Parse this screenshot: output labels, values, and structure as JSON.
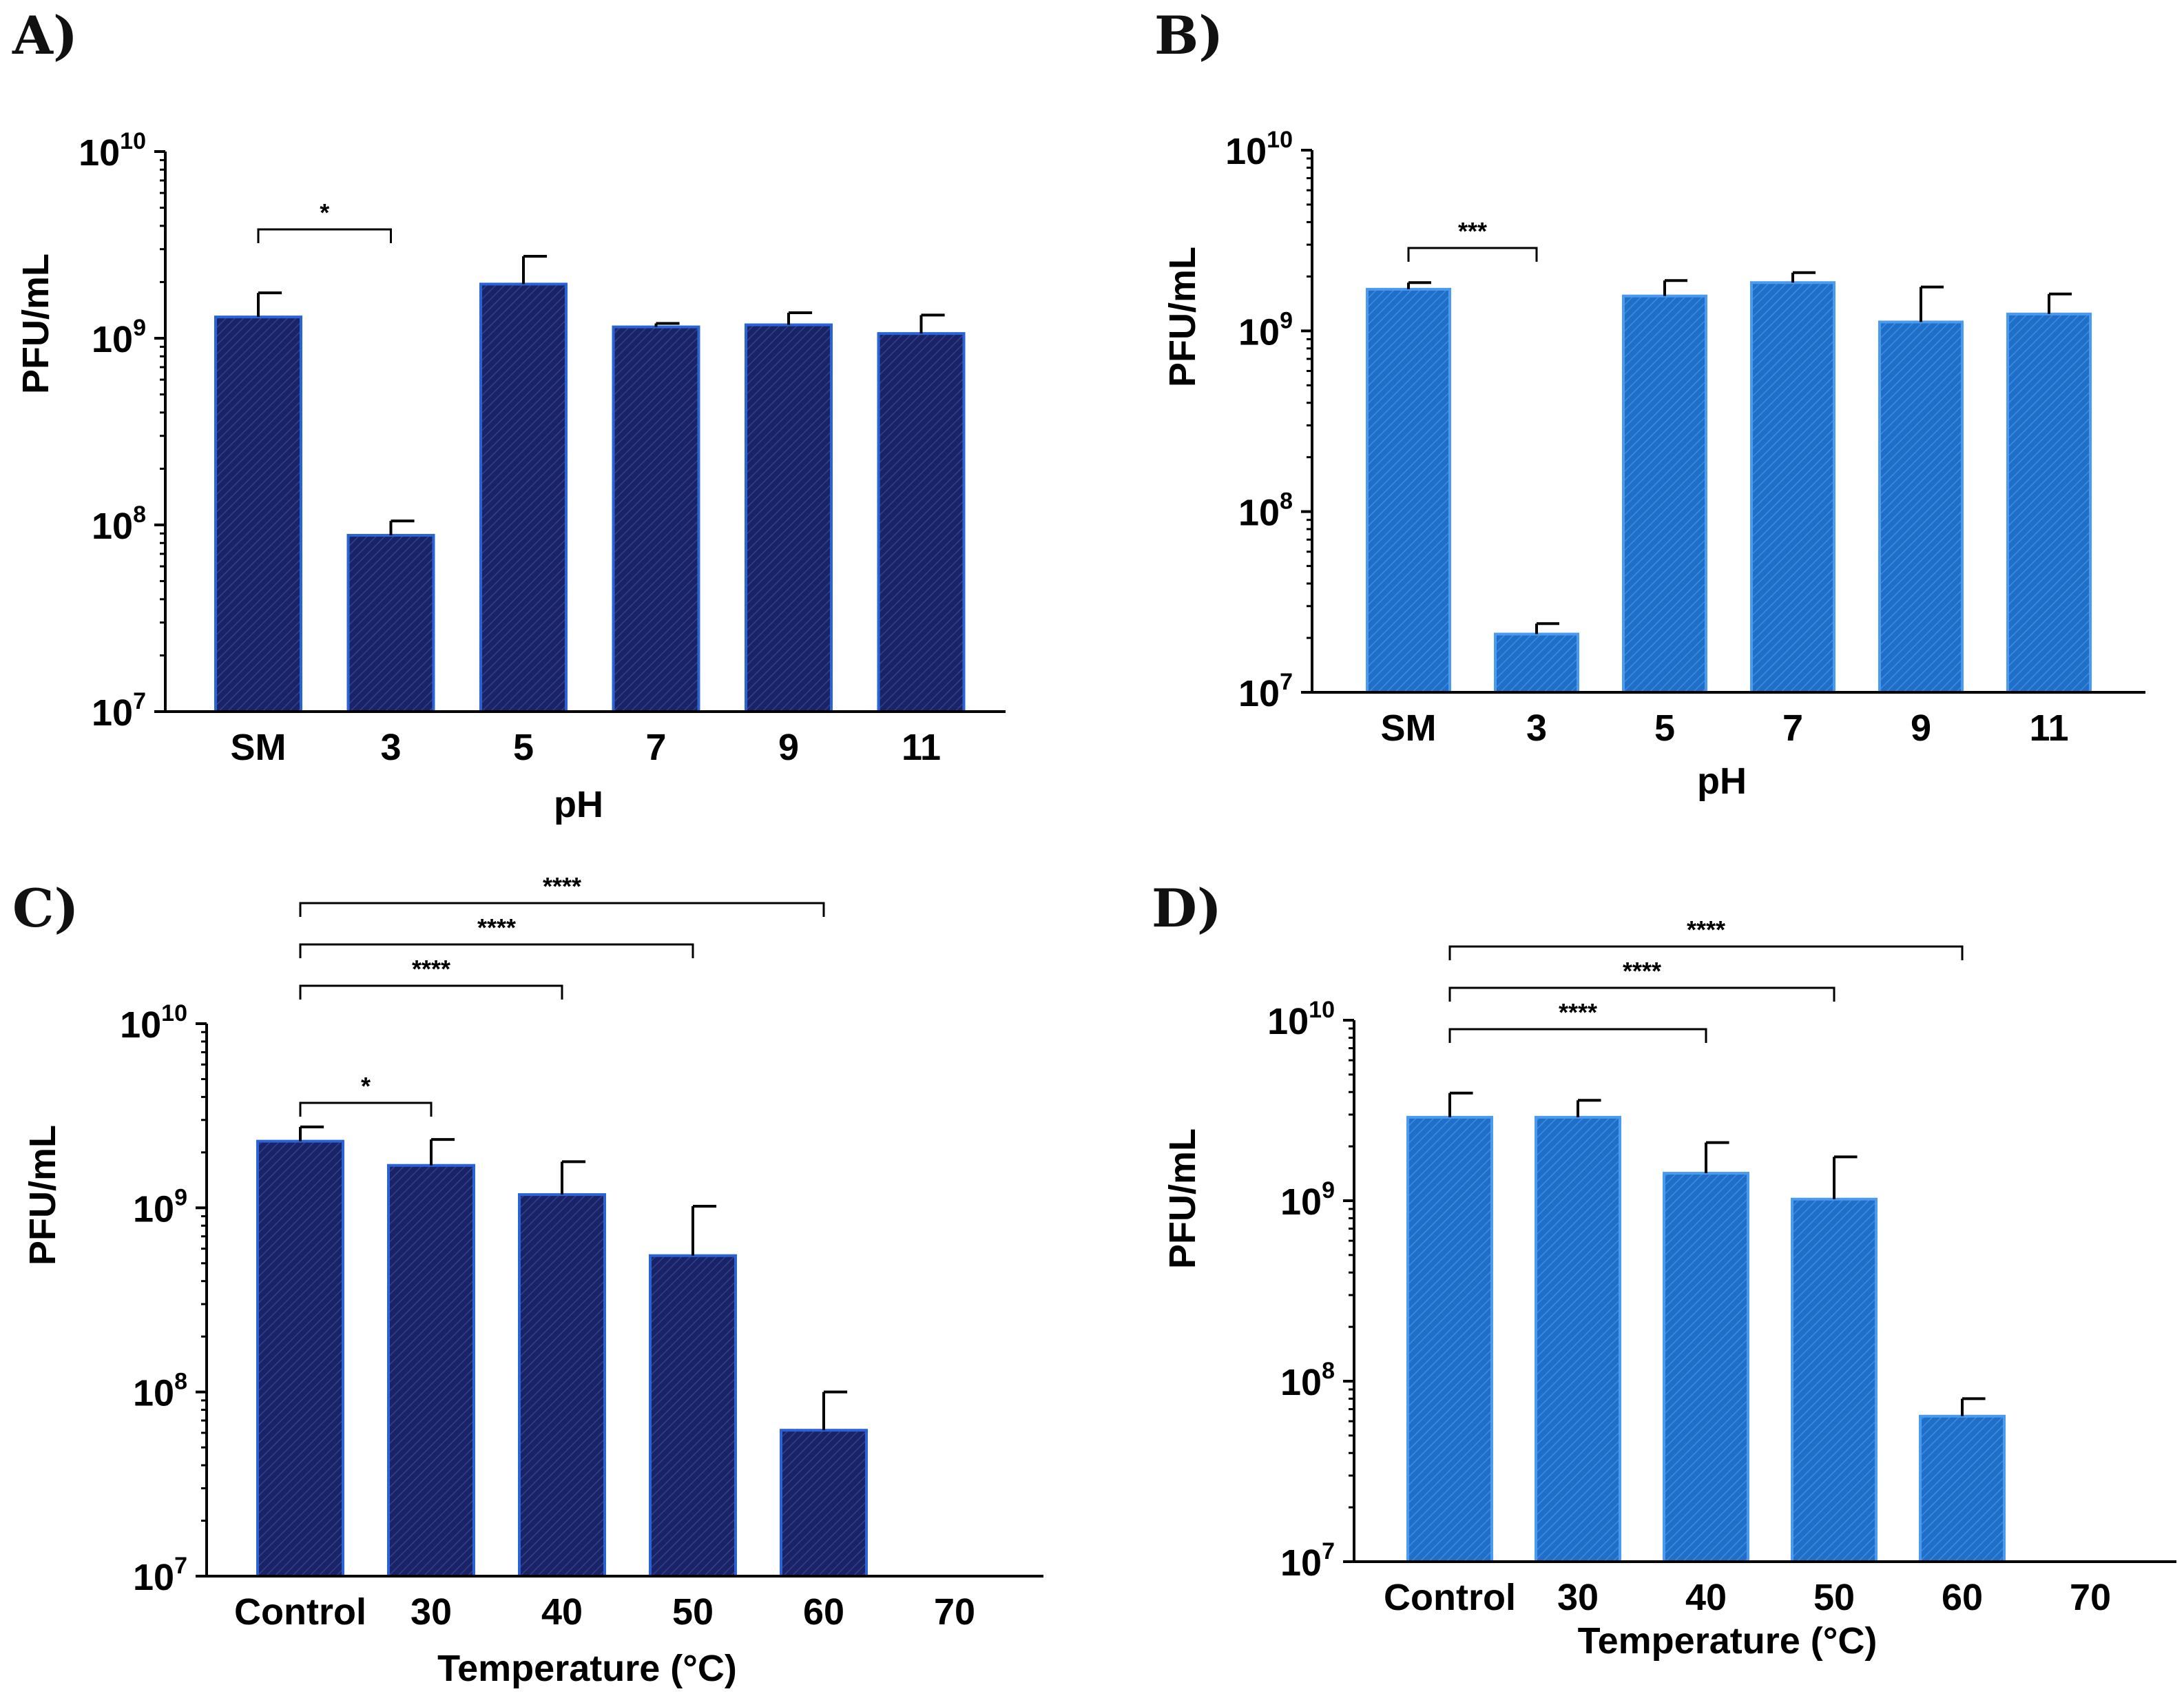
{
  "panels": [
    {
      "letter": "A)",
      "fill": "#1a2366",
      "border": "#2a63d6",
      "chart_data": {
        "type": "bar",
        "scale": "log",
        "ylim": [
          10000000,
          10000000000
        ],
        "yticks": [
          {
            "base": "10",
            "exp": "7"
          },
          {
            "base": "10",
            "exp": "8"
          },
          {
            "base": "10",
            "exp": "9"
          },
          {
            "base": "10",
            "exp": "10"
          }
        ],
        "xlabel": "pH",
        "ylabel": "PFU/mL",
        "categories": [
          "SM",
          "3",
          "5",
          "7",
          "9",
          "11"
        ],
        "values": [
          1300000000,
          88000000,
          1950000000,
          1150000000,
          1180000000,
          1060000000
        ],
        "errors_upper": [
          1750000000,
          105000000,
          2750000000,
          1200000000,
          1370000000,
          1330000000
        ],
        "significance": [
          {
            "from": 0,
            "to": 1,
            "label": "*"
          }
        ]
      }
    },
    {
      "letter": "B)",
      "fill": "#1f6fc8",
      "border": "#4a9af0",
      "chart_data": {
        "type": "bar",
        "scale": "log",
        "ylim": [
          10000000,
          10000000000
        ],
        "yticks": [
          {
            "base": "10",
            "exp": "7"
          },
          {
            "base": "10",
            "exp": "8"
          },
          {
            "base": "10",
            "exp": "9"
          },
          {
            "base": "10",
            "exp": "10"
          }
        ],
        "xlabel": "pH",
        "ylabel": "PFU/mL",
        "categories": [
          "SM",
          "3",
          "5",
          "7",
          "9",
          "11"
        ],
        "values": [
          1700000000,
          21000000,
          1560000000,
          1850000000,
          1120000000,
          1240000000
        ],
        "errors_upper": [
          1850000000,
          24000000,
          1900000000,
          2100000000,
          1750000000,
          1600000000
        ],
        "significance": [
          {
            "from": 0,
            "to": 1,
            "label": "***"
          }
        ]
      }
    },
    {
      "letter": "C)",
      "fill": "#1a2366",
      "border": "#2a63d6",
      "chart_data": {
        "type": "bar",
        "scale": "log",
        "ylim": [
          10000000,
          10000000000
        ],
        "yticks": [
          {
            "base": "10",
            "exp": "7"
          },
          {
            "base": "10",
            "exp": "8"
          },
          {
            "base": "10",
            "exp": "9"
          },
          {
            "base": "10",
            "exp": "10"
          }
        ],
        "xlabel": "Temperature (°C)",
        "ylabel": "PFU/mL",
        "categories": [
          "Control",
          "30",
          "40",
          "50",
          "60",
          "70"
        ],
        "values": [
          2300000000,
          1700000000,
          1180000000,
          550000000,
          62000000,
          null
        ],
        "errors_upper": [
          2750000000,
          2350000000,
          1780000000,
          1020000000,
          100000000,
          null
        ],
        "significance": [
          {
            "from": 0,
            "to": 1,
            "label": "*"
          },
          {
            "from": 0,
            "to": 2,
            "label": "****"
          },
          {
            "from": 0,
            "to": 3,
            "label": "****"
          },
          {
            "from": 0,
            "to": 4,
            "label": "****"
          }
        ]
      }
    },
    {
      "letter": "D)",
      "fill": "#1f6fc8",
      "border": "#4a9af0",
      "chart_data": {
        "type": "bar",
        "scale": "log",
        "ylim": [
          10000000,
          10000000000
        ],
        "yticks": [
          {
            "base": "10",
            "exp": "7"
          },
          {
            "base": "10",
            "exp": "8"
          },
          {
            "base": "10",
            "exp": "9"
          },
          {
            "base": "10",
            "exp": "10"
          }
        ],
        "xlabel": "Temperature (°C)",
        "ylabel": "PFU/mL",
        "categories": [
          "Control",
          "30",
          "40",
          "50",
          "60",
          "70"
        ],
        "values": [
          2900000000,
          2900000000,
          1420000000,
          1020000000,
          64000000,
          null
        ],
        "errors_upper": [
          3950000000,
          3600000000,
          2100000000,
          1750000000,
          80000000,
          null
        ],
        "significance": [
          {
            "from": 0,
            "to": 2,
            "label": "****"
          },
          {
            "from": 0,
            "to": 3,
            "label": "****"
          },
          {
            "from": 0,
            "to": 4,
            "label": "****"
          }
        ]
      }
    }
  ]
}
